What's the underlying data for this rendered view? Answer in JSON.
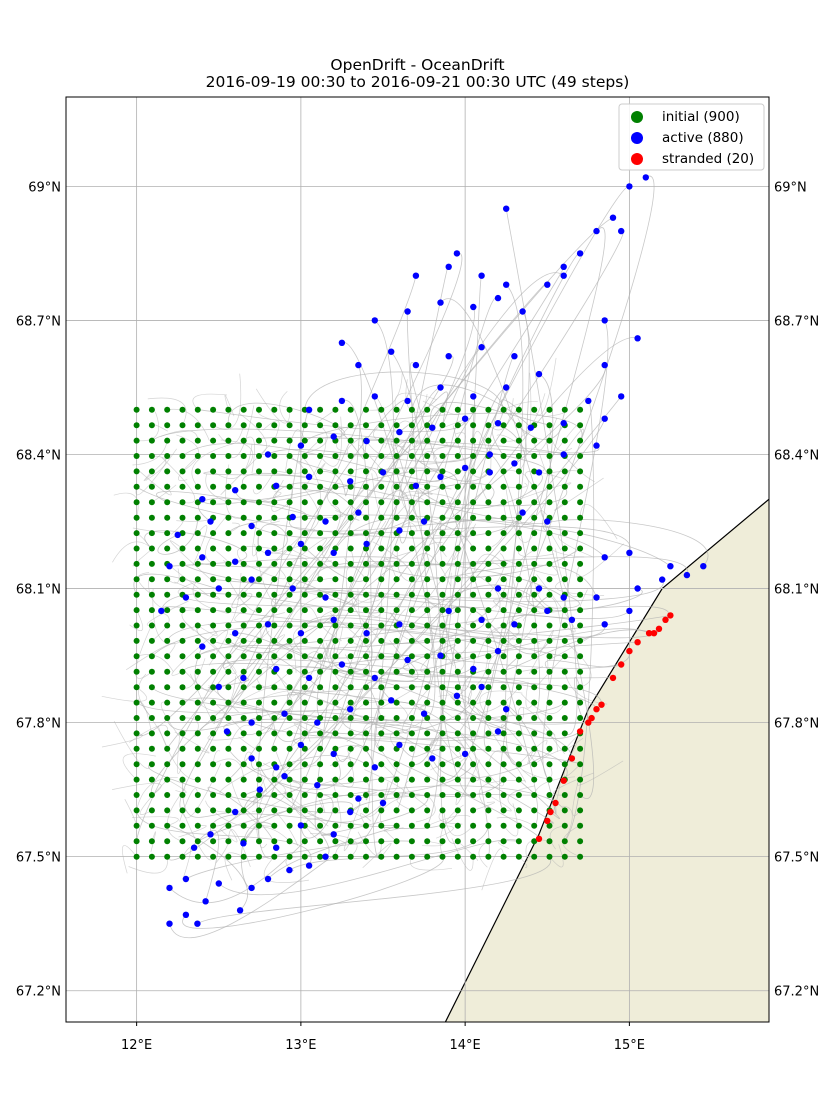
{
  "title_line1": "OpenDrift - OceanDrift",
  "title_line2": "2016-09-19 00:30 to 2016-09-21 00:30 UTC (49 steps)",
  "chart_data": {
    "type": "scatter",
    "projection": "map",
    "xlim": [
      11.57,
      15.85
    ],
    "ylim": [
      67.13,
      69.2
    ],
    "xticks": [
      12,
      13,
      14,
      15
    ],
    "xtick_labels": [
      "12°E",
      "13°E",
      "14°E",
      "15°E"
    ],
    "yticks": [
      67.2,
      67.5,
      67.8,
      68.1,
      68.4,
      68.7,
      69.0
    ],
    "ytick_labels": [
      "67.2°N",
      "67.5°N",
      "67.8°N",
      "68.1°N",
      "68.4°N",
      "68.7°N",
      "69°N"
    ],
    "grid": true,
    "legend_position": "top-right",
    "coastline": [
      [
        13.88,
        67.13
      ],
      [
        14.45,
        67.55
      ],
      [
        14.75,
        67.83
      ],
      [
        15.2,
        68.1
      ],
      [
        15.85,
        68.3
      ]
    ],
    "land_color": "#efedd9",
    "colors": {
      "initial": "#008000",
      "active": "#0000ff",
      "stranded": "#ff0000",
      "trajectory": "#b0b0b0"
    },
    "initial_grid": {
      "lon_start": 12.0,
      "lon_end": 14.7,
      "lon_count": 30,
      "lat_start": 67.5,
      "lat_end": 68.5,
      "lat_count": 30
    },
    "series": [
      {
        "name": "initial (900)",
        "key": "initial"
      },
      {
        "name": "active (880)",
        "key": "active"
      },
      {
        "name": "stranded (20)",
        "key": "stranded"
      }
    ],
    "active_points": [
      [
        12.2,
        67.35
      ],
      [
        12.3,
        67.37
      ],
      [
        12.37,
        67.35
      ],
      [
        12.42,
        67.4
      ],
      [
        12.2,
        67.43
      ],
      [
        12.3,
        67.45
      ],
      [
        12.5,
        67.44
      ],
      [
        12.63,
        67.38
      ],
      [
        12.7,
        67.43
      ],
      [
        12.8,
        67.45
      ],
      [
        12.93,
        67.47
      ],
      [
        13.05,
        67.48
      ],
      [
        13.15,
        67.5
      ],
      [
        12.35,
        67.52
      ],
      [
        12.45,
        67.55
      ],
      [
        12.65,
        67.53
      ],
      [
        12.85,
        67.52
      ],
      [
        13.0,
        67.57
      ],
      [
        13.2,
        67.55
      ],
      [
        13.3,
        67.6
      ],
      [
        12.6,
        67.6
      ],
      [
        12.75,
        67.65
      ],
      [
        12.9,
        67.68
      ],
      [
        13.1,
        67.66
      ],
      [
        13.35,
        67.63
      ],
      [
        13.5,
        67.62
      ],
      [
        12.7,
        67.72
      ],
      [
        12.85,
        67.7
      ],
      [
        13.0,
        67.75
      ],
      [
        13.2,
        67.73
      ],
      [
        13.45,
        67.7
      ],
      [
        13.6,
        67.75
      ],
      [
        13.8,
        67.72
      ],
      [
        14.0,
        67.73
      ],
      [
        14.2,
        67.78
      ],
      [
        12.55,
        67.78
      ],
      [
        12.7,
        67.8
      ],
      [
        12.9,
        67.82
      ],
      [
        13.1,
        67.8
      ],
      [
        13.3,
        67.83
      ],
      [
        13.55,
        67.85
      ],
      [
        13.75,
        67.82
      ],
      [
        13.95,
        67.86
      ],
      [
        14.1,
        67.88
      ],
      [
        14.25,
        67.83
      ],
      [
        12.5,
        67.88
      ],
      [
        12.65,
        67.9
      ],
      [
        12.85,
        67.92
      ],
      [
        13.05,
        67.9
      ],
      [
        13.25,
        67.93
      ],
      [
        13.45,
        67.9
      ],
      [
        13.65,
        67.94
      ],
      [
        13.85,
        67.95
      ],
      [
        14.05,
        67.92
      ],
      [
        14.2,
        67.96
      ],
      [
        12.4,
        67.97
      ],
      [
        12.6,
        68.0
      ],
      [
        12.8,
        68.02
      ],
      [
        13.0,
        68.0
      ],
      [
        13.2,
        68.03
      ],
      [
        13.4,
        68.0
      ],
      [
        13.6,
        68.02
      ],
      [
        13.9,
        68.05
      ],
      [
        14.1,
        68.03
      ],
      [
        14.3,
        68.02
      ],
      [
        14.5,
        68.05
      ],
      [
        14.65,
        68.03
      ],
      [
        14.85,
        68.02
      ],
      [
        15.0,
        68.05
      ],
      [
        12.15,
        68.05
      ],
      [
        12.3,
        68.08
      ],
      [
        12.5,
        68.1
      ],
      [
        12.7,
        68.12
      ],
      [
        12.95,
        68.1
      ],
      [
        13.15,
        68.08
      ],
      [
        14.2,
        68.1
      ],
      [
        14.45,
        68.1
      ],
      [
        14.6,
        68.08
      ],
      [
        14.8,
        68.08
      ],
      [
        15.05,
        68.1
      ],
      [
        15.2,
        68.12
      ],
      [
        15.35,
        68.13
      ],
      [
        12.2,
        68.15
      ],
      [
        12.4,
        68.17
      ],
      [
        12.6,
        68.16
      ],
      [
        12.8,
        68.18
      ],
      [
        13.0,
        68.2
      ],
      [
        13.2,
        68.18
      ],
      [
        13.4,
        68.2
      ],
      [
        14.85,
        68.17
      ],
      [
        15.0,
        68.18
      ],
      [
        15.25,
        68.15
      ],
      [
        15.45,
        68.15
      ],
      [
        12.25,
        68.22
      ],
      [
        12.45,
        68.25
      ],
      [
        12.7,
        68.24
      ],
      [
        12.95,
        68.26
      ],
      [
        13.15,
        68.25
      ],
      [
        13.35,
        68.27
      ],
      [
        13.6,
        68.23
      ],
      [
        13.75,
        68.25
      ],
      [
        14.35,
        68.27
      ],
      [
        14.5,
        68.25
      ],
      [
        12.4,
        68.3
      ],
      [
        12.6,
        68.32
      ],
      [
        12.85,
        68.33
      ],
      [
        13.05,
        68.35
      ],
      [
        13.3,
        68.34
      ],
      [
        13.5,
        68.36
      ],
      [
        13.7,
        68.33
      ],
      [
        13.85,
        68.35
      ],
      [
        14.0,
        68.37
      ],
      [
        14.15,
        68.36
      ],
      [
        14.3,
        68.38
      ],
      [
        14.45,
        68.36
      ],
      [
        14.6,
        68.4
      ],
      [
        14.8,
        68.42
      ],
      [
        12.8,
        68.4
      ],
      [
        13.0,
        68.42
      ],
      [
        13.2,
        68.44
      ],
      [
        13.4,
        68.43
      ],
      [
        13.6,
        68.45
      ],
      [
        13.8,
        68.46
      ],
      [
        14.0,
        68.48
      ],
      [
        14.2,
        68.47
      ],
      [
        14.4,
        68.46
      ],
      [
        14.6,
        68.47
      ],
      [
        14.85,
        68.48
      ],
      [
        13.05,
        68.5
      ],
      [
        13.25,
        68.52
      ],
      [
        13.45,
        68.53
      ],
      [
        13.65,
        68.52
      ],
      [
        13.85,
        68.55
      ],
      [
        14.05,
        68.53
      ],
      [
        14.25,
        68.55
      ],
      [
        14.75,
        68.52
      ],
      [
        14.95,
        68.53
      ],
      [
        13.35,
        68.6
      ],
      [
        13.55,
        68.63
      ],
      [
        13.7,
        68.6
      ],
      [
        13.9,
        68.62
      ],
      [
        14.1,
        68.64
      ],
      [
        14.3,
        68.62
      ],
      [
        14.45,
        68.58
      ],
      [
        14.85,
        68.6
      ],
      [
        15.05,
        68.66
      ],
      [
        13.45,
        68.7
      ],
      [
        13.65,
        68.72
      ],
      [
        13.85,
        68.74
      ],
      [
        14.05,
        68.73
      ],
      [
        14.2,
        68.75
      ],
      [
        14.35,
        68.72
      ],
      [
        14.85,
        68.7
      ],
      [
        13.7,
        68.8
      ],
      [
        13.9,
        68.82
      ],
      [
        14.1,
        68.8
      ],
      [
        14.25,
        68.78
      ],
      [
        14.5,
        68.78
      ],
      [
        14.6,
        68.82
      ],
      [
        14.7,
        68.85
      ],
      [
        14.8,
        68.9
      ],
      [
        14.9,
        68.93
      ],
      [
        14.95,
        68.9
      ],
      [
        15.0,
        69.0
      ],
      [
        15.1,
        69.02
      ],
      [
        14.25,
        68.95
      ],
      [
        13.95,
        68.85
      ],
      [
        14.6,
        68.8
      ],
      [
        13.25,
        68.65
      ],
      [
        14.15,
        68.4
      ]
    ],
    "stranded_points": [
      [
        14.45,
        67.54
      ],
      [
        14.5,
        67.58
      ],
      [
        14.52,
        67.6
      ],
      [
        14.55,
        67.62
      ],
      [
        14.6,
        67.67
      ],
      [
        14.65,
        67.72
      ],
      [
        14.7,
        67.78
      ],
      [
        14.75,
        67.8
      ],
      [
        14.77,
        67.81
      ],
      [
        14.8,
        67.83
      ],
      [
        14.83,
        67.84
      ],
      [
        14.9,
        67.9
      ],
      [
        14.95,
        67.93
      ],
      [
        15.0,
        67.96
      ],
      [
        15.05,
        67.98
      ],
      [
        15.12,
        68.0
      ],
      [
        15.15,
        68.0
      ],
      [
        15.18,
        68.01
      ],
      [
        15.22,
        68.03
      ],
      [
        15.25,
        68.04
      ]
    ]
  }
}
